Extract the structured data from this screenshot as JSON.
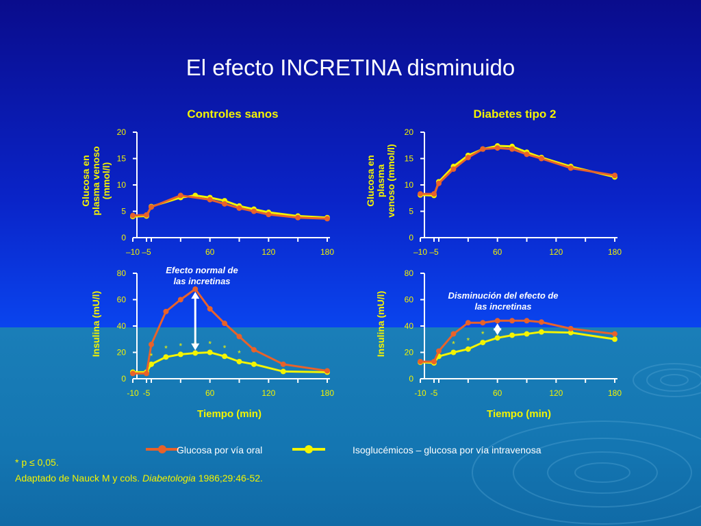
{
  "title": "El efecto INCRETINA disminuido",
  "colors": {
    "oral": "#e8622a",
    "iv": "#f4f400",
    "text_yellow": "#f4f400",
    "axis": "#ffffff"
  },
  "legend": {
    "oral_label": "Glucosa por vía oral",
    "iv_label": "Isoglucémicos – glucosa por vía intravenosa"
  },
  "footnote": {
    "star": "* p",
    "leq": "≤",
    "value": " 0,05."
  },
  "source": {
    "prefix": "Adaptado de Nauck M y cols. ",
    "journal": "Diabetologia",
    "suffix": " 1986;29:46-52."
  },
  "chart_data": [
    {
      "id": "glucose-controls",
      "type": "line",
      "panel_title": "Controles sanos",
      "ylabel": "Glucosa en plasma venoso (mmol/l)",
      "xlabel": "",
      "ylim": [
        0,
        20
      ],
      "yticks": [
        "0",
        "5",
        "10",
        "15",
        "20"
      ],
      "xticks": [
        "–10",
        "–5",
        "60",
        "120",
        "180"
      ],
      "series": [
        {
          "name": "Glucosa por vía oral",
          "color": "#e8622a",
          "points": [
            [
              -10,
              4.2
            ],
            [
              -5,
              4.3
            ],
            [
              0,
              5.8
            ],
            [
              30,
              8.0
            ],
            [
              60,
              7.2
            ],
            [
              75,
              6.4
            ],
            [
              90,
              5.6
            ],
            [
              105,
              5.0
            ],
            [
              120,
              4.4
            ],
            [
              150,
              3.8
            ],
            [
              180,
              3.6
            ]
          ]
        },
        {
          "name": "Isoglucémicos – glucosa por vía intravenosa",
          "color": "#f4f400",
          "points": [
            [
              -10,
              4.0
            ],
            [
              -5,
              4.1
            ],
            [
              0,
              5.9
            ],
            [
              30,
              7.6
            ],
            [
              45,
              8.0
            ],
            [
              60,
              7.6
            ],
            [
              75,
              7.0
            ],
            [
              90,
              6.0
            ],
            [
              105,
              5.4
            ],
            [
              120,
              4.8
            ],
            [
              150,
              4.1
            ],
            [
              180,
              3.8
            ]
          ]
        }
      ],
      "stars": []
    },
    {
      "id": "glucose-diabetes",
      "type": "line",
      "panel_title": "Diabetes tipo 2",
      "ylabel": "Glucosa en plasma venoso (mmol/l)",
      "xlabel": "",
      "ylim": [
        0,
        20
      ],
      "yticks": [
        "0",
        "5",
        "10",
        "15",
        "20"
      ],
      "xticks": [
        "–10",
        "–5",
        "60",
        "120",
        "180"
      ],
      "series": [
        {
          "name": "Glucosa por vía oral",
          "color": "#e8622a",
          "points": [
            [
              -10,
              8.3
            ],
            [
              -5,
              8.3
            ],
            [
              0,
              10.3
            ],
            [
              15,
              13.0
            ],
            [
              30,
              15.2
            ],
            [
              45,
              16.8
            ],
            [
              60,
              17.0
            ],
            [
              75,
              16.8
            ],
            [
              90,
              15.8
            ],
            [
              105,
              15.0
            ],
            [
              135,
              13.2
            ],
            [
              180,
              11.8
            ]
          ]
        },
        {
          "name": "Isoglucémicos – glucosa por vía intravenosa",
          "color": "#f4f400",
          "points": [
            [
              -10,
              8.1
            ],
            [
              -5,
              8.0
            ],
            [
              0,
              10.6
            ],
            [
              15,
              13.5
            ],
            [
              30,
              15.6
            ],
            [
              45,
              16.8
            ],
            [
              60,
              17.4
            ],
            [
              75,
              17.3
            ],
            [
              90,
              16.2
            ],
            [
              105,
              15.2
            ],
            [
              135,
              13.5
            ],
            [
              180,
              11.5
            ]
          ]
        }
      ],
      "stars": []
    },
    {
      "id": "insulin-controls",
      "type": "line",
      "panel_title": "",
      "ylabel": "Insulina (mU/l)",
      "xlabel": "Tiempo (min)",
      "ylim": [
        0,
        80
      ],
      "yticks": [
        "0",
        "20",
        "40",
        "60",
        "80"
      ],
      "xticks": [
        "-10",
        "-5",
        "60",
        "120",
        "180"
      ],
      "annotation": "Efecto normal de las incretinas",
      "series": [
        {
          "name": "Glucosa por vía oral",
          "color": "#e8622a",
          "points": [
            [
              -10,
              4
            ],
            [
              -5,
              4
            ],
            [
              0,
              26
            ],
            [
              15,
              51
            ],
            [
              30,
              60
            ],
            [
              45,
              68
            ],
            [
              60,
              53
            ],
            [
              75,
              42
            ],
            [
              90,
              32
            ],
            [
              105,
              22
            ],
            [
              135,
              11
            ],
            [
              180,
              6
            ]
          ]
        },
        {
          "name": "Isoglucémicos – glucosa por vía intravenosa",
          "color": "#f4f400",
          "points": [
            [
              -10,
              5
            ],
            [
              -5,
              5
            ],
            [
              0,
              11
            ],
            [
              15,
              16.5
            ],
            [
              30,
              18.5
            ],
            [
              45,
              19.5
            ],
            [
              60,
              20
            ],
            [
              75,
              17
            ],
            [
              90,
              13
            ],
            [
              105,
              11
            ],
            [
              135,
              5.5
            ],
            [
              180,
              5
            ]
          ]
        }
      ],
      "stars": [
        [
          0,
          11
        ],
        [
          15,
          16.5
        ],
        [
          30,
          18.5
        ],
        [
          45,
          19.5
        ],
        [
          60,
          20
        ],
        [
          75,
          17
        ],
        [
          90,
          13
        ]
      ]
    },
    {
      "id": "insulin-diabetes",
      "type": "line",
      "panel_title": "",
      "ylabel": "Insulina (mU/l)",
      "xlabel": "Tiempo (min)",
      "ylim": [
        0,
        80
      ],
      "yticks": [
        "0",
        "20",
        "40",
        "60",
        "80"
      ],
      "xticks": [
        "-10",
        "-5",
        "60",
        "120",
        "180"
      ],
      "annotation": "Disminución del efecto de las incretinas",
      "series": [
        {
          "name": "Glucosa por vía oral",
          "color": "#e8622a",
          "points": [
            [
              -10,
              13
            ],
            [
              -5,
              13
            ],
            [
              0,
              21
            ],
            [
              15,
              34
            ],
            [
              30,
              42.5
            ],
            [
              45,
              42.5
            ],
            [
              60,
              44
            ],
            [
              75,
              44
            ],
            [
              90,
              44
            ],
            [
              105,
              43
            ],
            [
              135,
              38
            ],
            [
              180,
              34
            ]
          ]
        },
        {
          "name": "Isoglucémicos – glucosa por vía intravenosa",
          "color": "#f4f400",
          "points": [
            [
              -10,
              12.5
            ],
            [
              -5,
              12
            ],
            [
              0,
              17
            ],
            [
              15,
              20
            ],
            [
              30,
              22.5
            ],
            [
              45,
              27.5
            ],
            [
              60,
              31
            ],
            [
              75,
              33
            ],
            [
              90,
              34
            ],
            [
              105,
              35.5
            ],
            [
              135,
              35
            ],
            [
              180,
              30
            ]
          ]
        }
      ],
      "stars": [
        [
          15,
          20
        ],
        [
          30,
          22.5
        ],
        [
          45,
          27.5
        ]
      ]
    }
  ]
}
